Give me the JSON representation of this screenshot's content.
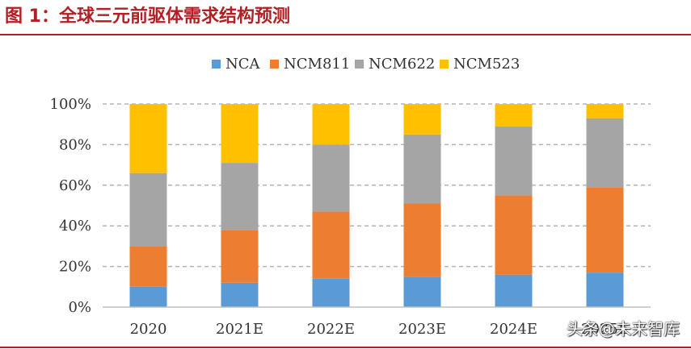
{
  "header": {
    "title": "图 1：全球三元前驱体需求结构预测"
  },
  "watermark": {
    "text": "头条@未来智库"
  },
  "chart_data": {
    "type": "bar",
    "stacked": true,
    "categories": [
      "2020",
      "2021E",
      "2022E",
      "2023E",
      "2024E",
      "2025E"
    ],
    "series": [
      {
        "name": "NCA",
        "values": [
          10,
          12,
          14,
          15,
          16,
          17
        ]
      },
      {
        "name": "NCM811",
        "values": [
          20,
          26,
          33,
          36,
          39,
          42
        ]
      },
      {
        "name": "NCM622",
        "values": [
          36,
          33,
          33,
          34,
          34,
          34
        ]
      },
      {
        "name": "NCM523",
        "values": [
          34,
          29,
          20,
          15,
          11,
          7
        ]
      }
    ],
    "colors": [
      "#5b9bd5",
      "#ed7d31",
      "#a5a5a5",
      "#ffc000"
    ],
    "ylim": [
      0,
      100
    ],
    "yticks": [
      0,
      20,
      40,
      60,
      80,
      100
    ],
    "ytick_format": "%",
    "grid": true,
    "legend": "top-center",
    "xlabel": "",
    "ylabel": ""
  }
}
